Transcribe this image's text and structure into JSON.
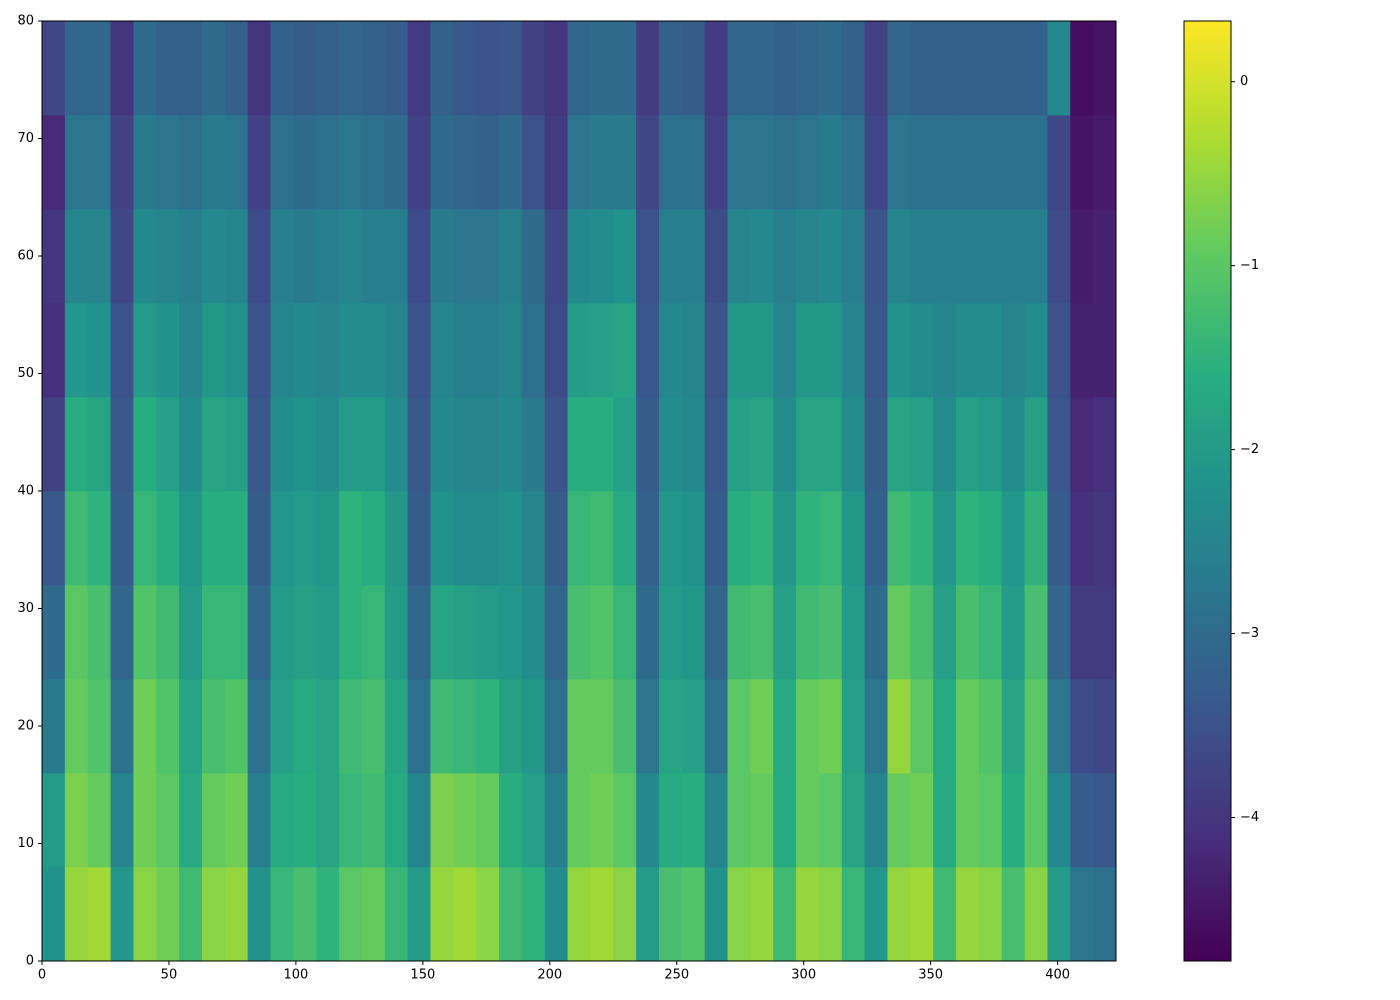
{
  "chart_data": {
    "type": "heatmap",
    "colormap": "viridis",
    "x_edges": [
      0,
      9,
      18,
      27,
      36,
      45,
      54,
      63,
      72,
      81,
      90,
      99,
      108,
      117,
      126,
      135,
      144,
      153,
      162,
      171,
      180,
      189,
      198,
      207,
      216,
      225,
      234,
      243,
      252,
      261,
      270,
      279,
      288,
      297,
      306,
      315,
      324,
      333,
      342,
      351,
      360,
      369,
      378,
      387,
      396,
      405,
      414,
      423
    ],
    "y_edges": [
      0,
      8,
      16,
      24,
      32,
      40,
      48,
      56,
      64,
      72,
      80
    ],
    "values": [
      [
        -2.2,
        -0.5,
        -0.4,
        -2.1,
        -0.6,
        -0.8,
        -1.3,
        -0.6,
        -0.5,
        -2.2,
        -1.4,
        -1.2,
        -1.5,
        -1.0,
        -0.9,
        -1.4,
        -2.0,
        -0.5,
        -0.4,
        -0.6,
        -1.3,
        -1.5,
        -2.3,
        -0.5,
        -0.4,
        -0.6,
        -2.0,
        -1.2,
        -1.1,
        -2.2,
        -0.6,
        -0.5,
        -1.3,
        -0.5,
        -0.6,
        -1.4,
        -2.1,
        -0.5,
        -0.4,
        -1.3,
        -0.5,
        -0.6,
        -1.2,
        -0.6,
        -2.0,
        -2.8,
        -2.9
      ],
      [
        -2.0,
        -0.7,
        -0.9,
        -2.5,
        -0.8,
        -1.0,
        -1.7,
        -0.9,
        -0.8,
        -2.6,
        -1.7,
        -1.6,
        -1.8,
        -1.4,
        -1.3,
        -1.7,
        -2.5,
        -0.7,
        -0.8,
        -0.9,
        -1.6,
        -1.9,
        -2.6,
        -0.9,
        -0.8,
        -1.0,
        -2.4,
        -1.7,
        -1.6,
        -2.5,
        -1.0,
        -0.9,
        -1.7,
        -0.9,
        -1.0,
        -1.8,
        -2.5,
        -0.9,
        -0.8,
        -1.7,
        -0.9,
        -1.0,
        -1.6,
        -1.0,
        -2.4,
        -3.3,
        -3.4
      ],
      [
        -2.7,
        -0.9,
        -1.1,
        -2.9,
        -0.8,
        -1.1,
        -1.8,
        -1.2,
        -1.1,
        -2.9,
        -1.9,
        -1.7,
        -1.8,
        -1.3,
        -1.2,
        -1.8,
        -2.9,
        -1.3,
        -1.4,
        -1.5,
        -1.9,
        -2.1,
        -2.9,
        -0.9,
        -0.9,
        -1.2,
        -2.8,
        -1.8,
        -1.9,
        -2.9,
        -1.0,
        -0.8,
        -1.7,
        -0.9,
        -0.8,
        -1.9,
        -2.8,
        -0.5,
        -1.0,
        -1.7,
        -0.9,
        -1.1,
        -1.8,
        -1.0,
        -2.8,
        -3.6,
        -3.7
      ],
      [
        -3.0,
        -1.0,
        -1.2,
        -3.1,
        -1.1,
        -1.3,
        -2.0,
        -1.4,
        -1.4,
        -3.1,
        -2.0,
        -1.9,
        -2.0,
        -1.5,
        -1.4,
        -2.0,
        -3.1,
        -1.8,
        -1.9,
        -2.0,
        -2.1,
        -2.3,
        -3.1,
        -1.2,
        -1.1,
        -1.4,
        -3.0,
        -2.0,
        -2.1,
        -3.1,
        -1.3,
        -1.2,
        -1.9,
        -1.3,
        -1.2,
        -2.0,
        -3.0,
        -0.9,
        -1.2,
        -1.9,
        -1.2,
        -1.4,
        -2.0,
        -1.2,
        -3.1,
        -3.9,
        -3.9
      ],
      [
        -3.4,
        -1.3,
        -1.5,
        -3.3,
        -1.4,
        -1.6,
        -2.1,
        -1.6,
        -1.6,
        -3.3,
        -2.1,
        -2.0,
        -2.1,
        -1.5,
        -1.6,
        -2.1,
        -3.3,
        -2.2,
        -2.3,
        -2.3,
        -2.2,
        -2.5,
        -3.3,
        -1.4,
        -1.3,
        -1.7,
        -3.2,
        -2.1,
        -2.2,
        -3.3,
        -1.6,
        -1.5,
        -2.1,
        -1.5,
        -1.4,
        -2.1,
        -3.2,
        -1.3,
        -1.5,
        -2.1,
        -1.5,
        -1.6,
        -2.1,
        -1.5,
        -3.3,
        -4.1,
        -4.0
      ],
      [
        -3.8,
        -1.6,
        -1.8,
        -3.4,
        -1.6,
        -1.9,
        -2.3,
        -1.8,
        -1.9,
        -3.4,
        -2.3,
        -2.2,
        -2.3,
        -2.0,
        -2.0,
        -2.3,
        -3.4,
        -2.4,
        -2.5,
        -2.5,
        -2.4,
        -2.7,
        -3.5,
        -1.6,
        -1.6,
        -1.9,
        -3.3,
        -2.3,
        -2.4,
        -3.4,
        -1.9,
        -1.8,
        -2.3,
        -1.8,
        -1.8,
        -2.3,
        -3.3,
        -1.8,
        -1.9,
        -2.3,
        -1.9,
        -2.0,
        -2.3,
        -1.9,
        -3.4,
        -4.2,
        -4.1
      ],
      [
        -4.1,
        -2.1,
        -2.2,
        -3.5,
        -2.0,
        -2.2,
        -2.5,
        -2.1,
        -2.2,
        -3.5,
        -2.5,
        -2.4,
        -2.5,
        -2.3,
        -2.3,
        -2.5,
        -3.5,
        -2.5,
        -2.6,
        -2.6,
        -2.5,
        -2.9,
        -3.6,
        -2.0,
        -1.9,
        -1.8,
        -3.4,
        -2.4,
        -2.5,
        -3.5,
        -2.1,
        -2.1,
        -2.5,
        -2.1,
        -2.1,
        -2.5,
        -3.4,
        -2.2,
        -2.3,
        -2.5,
        -2.3,
        -2.3,
        -2.5,
        -2.3,
        -3.5,
        -4.3,
        -4.3
      ],
      [
        -4.0,
        -2.5,
        -2.5,
        -3.7,
        -2.4,
        -2.5,
        -2.6,
        -2.4,
        -2.5,
        -3.6,
        -2.6,
        -2.7,
        -2.6,
        -2.5,
        -2.6,
        -2.6,
        -3.6,
        -2.7,
        -2.8,
        -2.8,
        -2.6,
        -3.0,
        -3.7,
        -2.4,
        -2.3,
        -2.2,
        -3.5,
        -2.6,
        -2.6,
        -3.6,
        -2.5,
        -2.4,
        -2.6,
        -2.5,
        -2.4,
        -2.6,
        -3.5,
        -2.5,
        -2.6,
        -2.6,
        -2.6,
        -2.6,
        -2.6,
        -2.6,
        -3.6,
        -4.4,
        -4.3
      ],
      [
        -4.2,
        -2.8,
        -2.8,
        -3.8,
        -2.7,
        -2.8,
        -2.9,
        -2.7,
        -2.8,
        -3.8,
        -2.9,
        -3.0,
        -2.9,
        -2.8,
        -2.9,
        -3.0,
        -3.8,
        -3.0,
        -3.1,
        -3.2,
        -3.0,
        -3.5,
        -3.9,
        -2.8,
        -2.7,
        -2.7,
        -3.7,
        -2.9,
        -2.9,
        -3.8,
        -2.8,
        -2.8,
        -2.9,
        -2.8,
        -2.7,
        -2.9,
        -3.7,
        -2.8,
        -2.9,
        -2.9,
        -2.9,
        -2.9,
        -2.9,
        -2.9,
        -3.7,
        -4.5,
        -4.4
      ],
      [
        -3.7,
        -3.1,
        -3.1,
        -4.0,
        -3.0,
        -3.2,
        -3.2,
        -3.0,
        -3.2,
        -4.0,
        -3.2,
        -3.3,
        -3.2,
        -3.1,
        -3.2,
        -3.3,
        -3.9,
        -3.2,
        -3.4,
        -3.5,
        -3.4,
        -3.8,
        -4.0,
        -3.1,
        -3.0,
        -3.0,
        -3.9,
        -3.2,
        -3.3,
        -3.9,
        -3.1,
        -3.1,
        -3.2,
        -3.1,
        -3.0,
        -3.2,
        -3.8,
        -3.1,
        -3.2,
        -3.2,
        -3.2,
        -3.2,
        -3.2,
        -3.2,
        -2.4,
        -4.6,
        -4.5
      ]
    ],
    "xlim": [
      0,
      423
    ],
    "xticks": [
      0,
      50,
      100,
      150,
      200,
      250,
      300,
      350,
      400
    ],
    "ylim": [
      0,
      80
    ],
    "yticks": [
      0,
      10,
      20,
      30,
      40,
      50,
      60,
      70,
      80
    ],
    "clim": [
      -4.78,
      0.33
    ],
    "colorbar_ticks": [
      {
        "value": 0,
        "label": "0"
      },
      {
        "value": -1,
        "label": "−1"
      },
      {
        "value": -2,
        "label": "−2"
      },
      {
        "value": -3,
        "label": "−3"
      },
      {
        "value": -4,
        "label": "−4"
      }
    ]
  }
}
